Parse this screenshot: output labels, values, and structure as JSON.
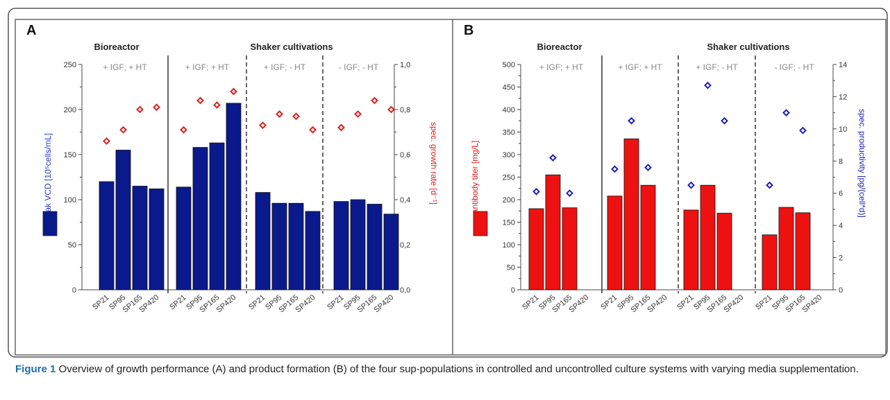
{
  "panels": [
    {
      "letter": "A",
      "group_titles": [
        "Bioreactor",
        "Shaker cultivations"
      ],
      "conditions": [
        "+ IGF; + HT",
        "+ IGF; + HT",
        "+ IGF; - HT",
        "- IGF; - HT"
      ],
      "left_axis_label": "peak VCD [10⁵cells/mL]",
      "right_axis_label": "spec. growth rate [d⁻¹]",
      "left_ticks": [
        "0",
        "50",
        "100",
        "150",
        "200",
        "250"
      ],
      "right_ticks": [
        "0,0",
        "0,2",
        "0,4",
        "0,6",
        "0,8",
        "1,0"
      ]
    },
    {
      "letter": "B",
      "group_titles": [
        "Bioreactor",
        "Shaker cultivations"
      ],
      "conditions": [
        "+ IGF; + HT",
        "+ IGF; + HT",
        "+ IGF; - HT",
        "- IGF; - HT"
      ],
      "left_axis_label": "antibody titer [mg/L]",
      "right_axis_label": "spec. productivity [pg/(cell*d)]",
      "left_ticks": [
        "0",
        "50",
        "100",
        "150",
        "200",
        "250",
        "300",
        "350",
        "400",
        "450",
        "500"
      ],
      "right_ticks": [
        "0",
        "2",
        "4",
        "6",
        "8",
        "10",
        "12",
        "14"
      ]
    }
  ],
  "caption": {
    "label": "Figure 1",
    "text": "Overview of growth performance (A) and product formation (B) of the four sup-populations in controlled and uncontrolled culture systems with varying media supplementation."
  },
  "chart_data": [
    {
      "type": "bar",
      "panel": "A",
      "categories": [
        "SP21",
        "SP95",
        "SP165",
        "SP420"
      ],
      "groups": [
        "+ IGF; + HT",
        "+ IGF; + HT",
        "+ IGF; - HT",
        "- IGF; - HT"
      ],
      "bar_color": "#0a1a8c",
      "marker_color": "#e02020",
      "ylim": [
        0,
        250
      ],
      "y2lim": [
        0,
        1.0
      ],
      "series": [
        {
          "values": [
            [
              120,
              155,
              115,
              112
            ],
            [
              114,
              158,
              163,
              207
            ],
            [
              108,
              96,
              96,
              87
            ],
            [
              98,
              100,
              95,
              84
            ]
          ]
        },
        {
          "values": [
            [
              0.66,
              0.71,
              0.8,
              0.81
            ],
            [
              0.71,
              0.84,
              0.82,
              0.88
            ],
            [
              0.73,
              0.78,
              0.77,
              0.71
            ],
            [
              0.72,
              0.78,
              0.84,
              0.8
            ]
          ]
        }
      ],
      "xlabel": "",
      "ylabel": "peak VCD [10⁵cells/mL]",
      "y2label": "spec. growth rate [d⁻¹]"
    },
    {
      "type": "bar",
      "panel": "B",
      "categories": [
        "SP21",
        "SP95",
        "SP165",
        "SP420"
      ],
      "groups": [
        "+ IGF; + HT",
        "+ IGF; + HT",
        "+ IGF; - HT",
        "- IGF; - HT"
      ],
      "bar_color": "#ee1111",
      "marker_color": "#2222bb",
      "ylim": [
        0,
        500
      ],
      "y2lim": [
        0,
        14
      ],
      "series": [
        {
          "values": [
            [
              180,
              255,
              182,
              null
            ],
            [
              208,
              335,
              232,
              null
            ],
            [
              177,
              232,
              170,
              null
            ],
            [
              122,
              183,
              171,
              null
            ]
          ]
        },
        {
          "values": [
            [
              6.1,
              8.2,
              6.0,
              null
            ],
            [
              7.5,
              10.5,
              7.6,
              null
            ],
            [
              6.5,
              12.7,
              10.5,
              null
            ],
            [
              6.5,
              11.0,
              9.9,
              null
            ]
          ]
        }
      ],
      "xlabel": "",
      "ylabel": "antibody titer [mg/L]",
      "y2label": "spec. productivity [pg/(cell*d)]"
    }
  ]
}
